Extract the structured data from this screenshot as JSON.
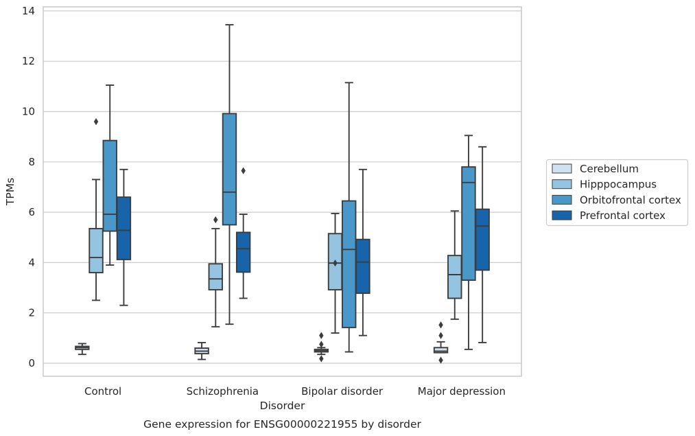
{
  "chart_data": {
    "type": "box",
    "caption": "Gene expression for ENSG00000221955 by disorder",
    "xlabel": "Disorder",
    "ylabel": "TPMs",
    "ylim": [
      -0.5,
      14.2
    ],
    "yticks": [
      0,
      2,
      4,
      6,
      8,
      10,
      12,
      14
    ],
    "grid": "horizontal",
    "legend_position": "right",
    "categories": [
      "Control",
      "Schizophrenia",
      "Bipolar disorder",
      "Major depression"
    ],
    "series": [
      {
        "name": "Cerebellum",
        "color": "#d0e1f2",
        "boxes": [
          {
            "whislo": 0.35,
            "q1": 0.55,
            "med": 0.62,
            "q3": 0.67,
            "whishi": 0.78,
            "fliers": []
          },
          {
            "whislo": 0.15,
            "q1": 0.38,
            "med": 0.48,
            "q3": 0.6,
            "whishi": 0.82,
            "fliers": []
          },
          {
            "whislo": 0.35,
            "q1": 0.45,
            "med": 0.5,
            "q3": 0.55,
            "whishi": 0.62,
            "fliers": [
              1.1,
              0.75,
              0.18
            ]
          },
          {
            "whislo": 0.42,
            "q1": 0.42,
            "med": 0.48,
            "q3": 0.62,
            "whishi": 0.85,
            "fliers": [
              1.52,
              1.1,
              0.12
            ]
          }
        ]
      },
      {
        "name": "Hipppocampus",
        "color": "#94c4df",
        "boxes": [
          {
            "whislo": 2.5,
            "q1": 3.6,
            "med": 4.2,
            "q3": 5.35,
            "whishi": 7.3,
            "fliers": [
              9.6
            ]
          },
          {
            "whislo": 1.45,
            "q1": 2.92,
            "med": 3.35,
            "q3": 3.95,
            "whishi": 5.35,
            "fliers": [
              5.7
            ]
          },
          {
            "whislo": 1.2,
            "q1": 2.92,
            "med": 3.98,
            "q3": 5.15,
            "whishi": 5.95,
            "fliers": [
              3.98
            ]
          },
          {
            "whislo": 1.75,
            "q1": 2.58,
            "med": 3.52,
            "q3": 4.28,
            "whishi": 6.05,
            "fliers": []
          }
        ]
      },
      {
        "name": "Orbitofrontal cortex",
        "color": "#4a98c9",
        "boxes": [
          {
            "whislo": 3.9,
            "q1": 5.25,
            "med": 5.92,
            "q3": 8.85,
            "whishi": 11.05,
            "fliers": []
          },
          {
            "whislo": 1.55,
            "q1": 5.5,
            "med": 6.8,
            "q3": 9.92,
            "whishi": 13.45,
            "fliers": []
          },
          {
            "whislo": 0.45,
            "q1": 1.42,
            "med": 4.52,
            "q3": 6.45,
            "whishi": 11.15,
            "fliers": []
          },
          {
            "whislo": 0.55,
            "q1": 3.3,
            "med": 7.18,
            "q3": 7.8,
            "whishi": 9.05,
            "fliers": []
          }
        ]
      },
      {
        "name": "Prefrontal cortex",
        "color": "#1764ab",
        "boxes": [
          {
            "whislo": 2.3,
            "q1": 4.12,
            "med": 5.28,
            "q3": 6.6,
            "whishi": 7.7,
            "fliers": []
          },
          {
            "whislo": 2.58,
            "q1": 3.62,
            "med": 4.55,
            "q3": 5.2,
            "whishi": 5.92,
            "fliers": [
              7.65
            ]
          },
          {
            "whislo": 1.1,
            "q1": 2.78,
            "med": 4.02,
            "q3": 4.92,
            "whishi": 7.7,
            "fliers": []
          },
          {
            "whislo": 0.82,
            "q1": 3.7,
            "med": 5.45,
            "q3": 6.12,
            "whishi": 8.6,
            "fliers": []
          }
        ]
      }
    ]
  }
}
